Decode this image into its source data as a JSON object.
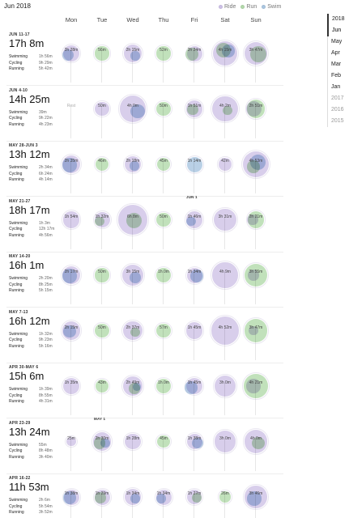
{
  "header": {
    "title": "Jun 2018",
    "legend": [
      {
        "label": "Ride",
        "color": "#cdc0e6"
      },
      {
        "label": "Run",
        "color": "#b2d9aa"
      },
      {
        "label": "Swim",
        "color": "#aac6e1"
      }
    ]
  },
  "days": [
    "Mon",
    "Tue",
    "Wed",
    "Thu",
    "Fri",
    "Sat",
    "Sun"
  ],
  "nav": {
    "items": [
      {
        "label": "2018",
        "type": "year",
        "active": true
      },
      {
        "label": "Jun",
        "type": "month",
        "active": true
      },
      {
        "label": "May",
        "type": "month"
      },
      {
        "label": "Apr",
        "type": "month"
      },
      {
        "label": "Mar",
        "type": "month"
      },
      {
        "label": "Feb",
        "type": "month"
      },
      {
        "label": "Jan",
        "type": "month"
      },
      {
        "label": "2017",
        "type": "year"
      },
      {
        "label": "2016",
        "type": "year"
      },
      {
        "label": "2015",
        "type": "year"
      }
    ]
  },
  "month_markers": [
    {
      "label": "JUN 1",
      "week": 2,
      "day": 4
    },
    {
      "label": "MAY 1",
      "week": 6,
      "day": 1
    }
  ],
  "weeks": [
    {
      "range": "JUN 11-17",
      "total": "17h 8m",
      "sports": [
        {
          "name": "Swimming",
          "time": "1h 56m"
        },
        {
          "name": "Cycling",
          "time": "9h 29m"
        },
        {
          "name": "Running",
          "time": "5h 42m"
        }
      ],
      "days": [
        {
          "label": "2h 28m",
          "bubbles": [
            {
              "type": "ride",
              "size": 0.55
            },
            {
              "type": "swim",
              "size": 0.38,
              "dx": -4,
              "dy": 2
            }
          ]
        },
        {
          "label": "56m",
          "bubbles": [
            {
              "type": "run",
              "size": 0.45
            }
          ]
        },
        {
          "label": "2h 15m",
          "bubbles": [
            {
              "type": "ride",
              "size": 0.6
            },
            {
              "type": "swim",
              "size": 0.3,
              "dx": 3,
              "dy": 3
            }
          ]
        },
        {
          "label": "52m",
          "bubbles": [
            {
              "type": "run",
              "size": 0.45
            }
          ]
        },
        {
          "label": "2h 24m",
          "bubbles": [
            {
              "type": "ride",
              "size": 0.5
            },
            {
              "type": "run",
              "size": 0.42,
              "dx": -3,
              "dy": 1
            }
          ]
        },
        {
          "label": "4h 15m",
          "bubbles": [
            {
              "type": "ride",
              "size": 0.8
            },
            {
              "type": "run",
              "size": 0.48,
              "dx": -2,
              "dy": -4
            },
            {
              "type": "swim",
              "size": 0.4,
              "dx": 4,
              "dy": -3
            }
          ]
        },
        {
          "label": "3h 47m",
          "bubbles": [
            {
              "type": "ride",
              "size": 0.75
            },
            {
              "type": "run",
              "size": 0.52,
              "dx": 3,
              "dy": 1
            }
          ]
        }
      ]
    },
    {
      "range": "JUN 4-10",
      "total": "14h 25m",
      "sports": [
        {
          "name": "Swimming",
          "time": "39m"
        },
        {
          "name": "Cycling",
          "time": "9h 22m"
        },
        {
          "name": "Running",
          "time": "4h 23m"
        }
      ],
      "days": [
        {
          "label": "Rest",
          "rest": true,
          "bubbles": []
        },
        {
          "label": "50m",
          "bubbles": [
            {
              "type": "ride",
              "size": 0.45
            }
          ]
        },
        {
          "label": "4h 0m",
          "bubbles": [
            {
              "type": "ride",
              "size": 0.85
            },
            {
              "type": "swim",
              "size": 0.45,
              "dx": 6,
              "dy": 3
            }
          ]
        },
        {
          "label": "50m",
          "bubbles": [
            {
              "type": "run",
              "size": 0.45
            }
          ]
        },
        {
          "label": "1h 51m",
          "bubbles": [
            {
              "type": "ride",
              "size": 0.55
            },
            {
              "type": "run",
              "size": 0.35,
              "dx": -2,
              "dy": 1
            }
          ]
        },
        {
          "label": "4h 2m",
          "bubbles": [
            {
              "type": "ride",
              "size": 0.82
            },
            {
              "type": "run",
              "size": 0.3,
              "dx": 3,
              "dy": 2
            }
          ]
        },
        {
          "label": "2h 51m",
          "bubbles": [
            {
              "type": "run",
              "size": 0.6
            },
            {
              "type": "ride",
              "size": 0.5,
              "dx": -3
            }
          ]
        }
      ]
    },
    {
      "range": "MAY 28-JUN 3",
      "total": "13h 12m",
      "sports": [
        {
          "name": "Swimming",
          "time": "2h 34m"
        },
        {
          "name": "Cycling",
          "time": "6h 24m"
        },
        {
          "name": "Running",
          "time": "4h 14m"
        }
      ],
      "days": [
        {
          "label": "2h 35m",
          "bubbles": [
            {
              "type": "ride",
              "size": 0.6
            },
            {
              "type": "swim",
              "size": 0.45,
              "dx": -2,
              "dy": 1
            }
          ]
        },
        {
          "label": "46m",
          "bubbles": [
            {
              "type": "run",
              "size": 0.42
            }
          ]
        },
        {
          "label": "2h 18m",
          "bubbles": [
            {
              "type": "ride",
              "size": 0.55
            },
            {
              "type": "swim",
              "size": 0.3,
              "dx": 2,
              "dy": 2
            }
          ]
        },
        {
          "label": "45m",
          "bubbles": [
            {
              "type": "run",
              "size": 0.42
            }
          ]
        },
        {
          "label": "1h 14m",
          "bubbles": [
            {
              "type": "swim",
              "size": 0.5
            }
          ]
        },
        {
          "label": "42m",
          "bubbles": [
            {
              "type": "ride",
              "size": 0.4
            }
          ]
        },
        {
          "label": "4h 53m",
          "bubbles": [
            {
              "type": "ride",
              "size": 0.85
            },
            {
              "type": "swim",
              "size": 0.5,
              "dx": 2,
              "dy": -3
            },
            {
              "type": "run",
              "size": 0.4,
              "dx": -3,
              "dy": 3
            }
          ]
        }
      ]
    },
    {
      "range": "MAY 21-27",
      "total": "18h 17m",
      "sports": [
        {
          "name": "Swimming",
          "time": "1h 3m"
        },
        {
          "name": "Cycling",
          "time": "12h 17m"
        },
        {
          "name": "Running",
          "time": "4h 56m"
        }
      ],
      "days": [
        {
          "label": "1h 54m",
          "bubbles": [
            {
              "type": "ride",
              "size": 0.55
            }
          ]
        },
        {
          "label": "1h 32m",
          "bubbles": [
            {
              "type": "ride",
              "size": 0.5
            },
            {
              "type": "run",
              "size": 0.3,
              "dx": -3,
              "dy": 2
            }
          ]
        },
        {
          "label": "6h 8m",
          "bubbles": [
            {
              "type": "ride",
              "size": 0.95
            },
            {
              "type": "run",
              "size": 0.5,
              "dx": 1,
              "dy": 1
            }
          ]
        },
        {
          "label": "50m",
          "bubbles": [
            {
              "type": "run",
              "size": 0.45
            }
          ]
        },
        {
          "label": "1h 46m",
          "bubbles": [
            {
              "type": "ride",
              "size": 0.55
            },
            {
              "type": "swim",
              "size": 0.3,
              "dx": -4,
              "dy": 2
            }
          ]
        },
        {
          "label": "3h 31m",
          "bubbles": [
            {
              "type": "ride",
              "size": 0.72
            }
          ]
        },
        {
          "label": "2h 21m",
          "bubbles": [
            {
              "type": "run",
              "size": 0.55
            },
            {
              "type": "ride",
              "size": 0.35,
              "dx": -4
            }
          ]
        }
      ]
    },
    {
      "range": "MAY 14-20",
      "total": "16h 1m",
      "sports": [
        {
          "name": "Swimming",
          "time": "2h 20m"
        },
        {
          "name": "Cycling",
          "time": "8h 25m"
        },
        {
          "name": "Running",
          "time": "5h 15m"
        }
      ],
      "days": [
        {
          "label": "2h 17m",
          "bubbles": [
            {
              "type": "ride",
              "size": 0.6
            },
            {
              "type": "swim",
              "size": 0.45,
              "dx": -2,
              "dy": 1
            }
          ]
        },
        {
          "label": "50m",
          "bubbles": [
            {
              "type": "run",
              "size": 0.45
            }
          ]
        },
        {
          "label": "3h 15m",
          "bubbles": [
            {
              "type": "ride",
              "size": 0.7
            },
            {
              "type": "swim",
              "size": 0.35,
              "dx": 3,
              "dy": 3
            }
          ]
        },
        {
          "label": "1h 0m",
          "bubbles": [
            {
              "type": "run",
              "size": 0.48
            }
          ]
        },
        {
          "label": "1h 34m",
          "bubbles": [
            {
              "type": "ride",
              "size": 0.5
            },
            {
              "type": "swim",
              "size": 0.4,
              "dx": 3,
              "dy": 1
            }
          ]
        },
        {
          "label": "4h 9m",
          "bubbles": [
            {
              "type": "ride",
              "size": 0.82
            }
          ]
        },
        {
          "label": "3h 55m",
          "bubbles": [
            {
              "type": "run",
              "size": 0.75
            },
            {
              "type": "ride",
              "size": 0.35,
              "dx": -3
            }
          ]
        }
      ]
    },
    {
      "range": "MAY 7-13",
      "total": "16h 12m",
      "sports": [
        {
          "name": "Swimming",
          "time": "1h 32m"
        },
        {
          "name": "Cycling",
          "time": "9h 23m"
        },
        {
          "name": "Running",
          "time": "5h 16m"
        }
      ],
      "days": [
        {
          "label": "2h 15m",
          "bubbles": [
            {
              "type": "ride",
              "size": 0.6
            },
            {
              "type": "swim",
              "size": 0.42,
              "dx": -2,
              "dy": 1
            }
          ]
        },
        {
          "label": "50m",
          "bubbles": [
            {
              "type": "run",
              "size": 0.45
            }
          ]
        },
        {
          "label": "2h 37m",
          "bubbles": [
            {
              "type": "ride",
              "size": 0.62
            },
            {
              "type": "run",
              "size": 0.3,
              "dx": 3,
              "dy": 2
            }
          ]
        },
        {
          "label": "57m",
          "bubbles": [
            {
              "type": "run",
              "size": 0.46
            }
          ]
        },
        {
          "label": "1h 45m",
          "bubbles": [
            {
              "type": "ride",
              "size": 0.55
            }
          ]
        },
        {
          "label": "4h 52m",
          "bubbles": [
            {
              "type": "ride",
              "size": 0.92
            }
          ]
        },
        {
          "label": "3h 47m",
          "bubbles": [
            {
              "type": "run",
              "size": 0.75
            },
            {
              "type": "ride",
              "size": 0.3,
              "dx": -3
            }
          ]
        }
      ]
    },
    {
      "range": "APR 30-MAY 6",
      "total": "15h 6m",
      "sports": [
        {
          "name": "Swimming",
          "time": "1h 39m"
        },
        {
          "name": "Cycling",
          "time": "8h 55m"
        },
        {
          "name": "Running",
          "time": "4h 31m"
        }
      ],
      "days": [
        {
          "label": "1h 35m",
          "bubbles": [
            {
              "type": "ride",
              "size": 0.55
            }
          ]
        },
        {
          "label": "43m",
          "bubbles": [
            {
              "type": "run",
              "size": 0.42
            }
          ]
        },
        {
          "label": "2h 49m",
          "bubbles": [
            {
              "type": "ride",
              "size": 0.65
            },
            {
              "type": "run",
              "size": 0.35,
              "dx": 2,
              "dy": 3
            },
            {
              "type": "swim",
              "size": 0.25,
              "dx": 5,
              "dy": 1
            }
          ]
        },
        {
          "label": "1h 0m",
          "bubbles": [
            {
              "type": "run",
              "size": 0.48
            }
          ]
        },
        {
          "label": "1h 45m",
          "bubbles": [
            {
              "type": "ride",
              "size": 0.55
            },
            {
              "type": "swim",
              "size": 0.4,
              "dx": -4,
              "dy": 2
            }
          ]
        },
        {
          "label": "3h 0m",
          "bubbles": [
            {
              "type": "ride",
              "size": 0.7
            }
          ]
        },
        {
          "label": "4h 21m",
          "bubbles": [
            {
              "type": "run",
              "size": 0.78
            },
            {
              "type": "ride",
              "size": 0.45,
              "dx": -3
            }
          ]
        }
      ]
    },
    {
      "range": "APR 23-29",
      "total": "13h 24m",
      "sports": [
        {
          "name": "Swimming",
          "time": "55m"
        },
        {
          "name": "Cycling",
          "time": "8h 48m"
        },
        {
          "name": "Running",
          "time": "3h 40m"
        }
      ],
      "days": [
        {
          "label": "25m",
          "bubbles": [
            {
              "type": "ride",
              "size": 0.3
            }
          ]
        },
        {
          "label": "2h 30m",
          "bubbles": [
            {
              "type": "ride",
              "size": 0.6
            },
            {
              "type": "run",
              "size": 0.38,
              "dx": -3,
              "dy": 2
            },
            {
              "type": "swim",
              "size": 0.3,
              "dx": 4,
              "dy": 2
            }
          ]
        },
        {
          "label": "1h 28m",
          "bubbles": [
            {
              "type": "ride",
              "size": 0.52
            }
          ]
        },
        {
          "label": "45m",
          "bubbles": [
            {
              "type": "run",
              "size": 0.42
            }
          ]
        },
        {
          "label": "1h 38m",
          "bubbles": [
            {
              "type": "ride",
              "size": 0.5
            },
            {
              "type": "swim",
              "size": 0.35,
              "dx": 4,
              "dy": 2
            }
          ]
        },
        {
          "label": "3h 0m",
          "bubbles": [
            {
              "type": "ride",
              "size": 0.7
            }
          ]
        },
        {
          "label": "4h 0m",
          "bubbles": [
            {
              "type": "ride",
              "size": 0.75
            },
            {
              "type": "run",
              "size": 0.4,
              "dx": 3,
              "dy": 2
            }
          ]
        }
      ]
    },
    {
      "range": "APR 16-22",
      "total": "11h 53m",
      "sports": [
        {
          "name": "Swimming",
          "time": "2h 6m"
        },
        {
          "name": "Cycling",
          "time": "5h 54m"
        },
        {
          "name": "Running",
          "time": "3h 52m"
        }
      ],
      "days": [
        {
          "label": "1h 38m",
          "bubbles": [
            {
              "type": "ride",
              "size": 0.5
            },
            {
              "type": "swim",
              "size": 0.4,
              "dx": -2,
              "dy": 1
            }
          ]
        },
        {
          "label": "1h 29m",
          "bubbles": [
            {
              "type": "ride",
              "size": 0.5
            },
            {
              "type": "run",
              "size": 0.35,
              "dx": -2,
              "dy": 1
            }
          ]
        },
        {
          "label": "1h 34m",
          "bubbles": [
            {
              "type": "ride",
              "size": 0.52
            },
            {
              "type": "swim",
              "size": 0.3,
              "dx": 3,
              "dy": 2
            }
          ]
        },
        {
          "label": "1h 34m",
          "bubbles": [
            {
              "type": "ride",
              "size": 0.5
            },
            {
              "type": "swim",
              "size": 0.3,
              "dx": -3,
              "dy": 2
            }
          ]
        },
        {
          "label": "1h 27m",
          "bubbles": [
            {
              "type": "ride",
              "size": 0.48
            },
            {
              "type": "run",
              "size": 0.32,
              "dx": 3,
              "dy": 1
            }
          ]
        },
        {
          "label": "26m",
          "bubbles": [
            {
              "type": "run",
              "size": 0.35
            }
          ]
        },
        {
          "label": "3h 46m",
          "bubbles": [
            {
              "type": "ride",
              "size": 0.72
            },
            {
              "type": "swim",
              "size": 0.45,
              "dx": -2,
              "dy": 2
            }
          ]
        }
      ]
    }
  ]
}
